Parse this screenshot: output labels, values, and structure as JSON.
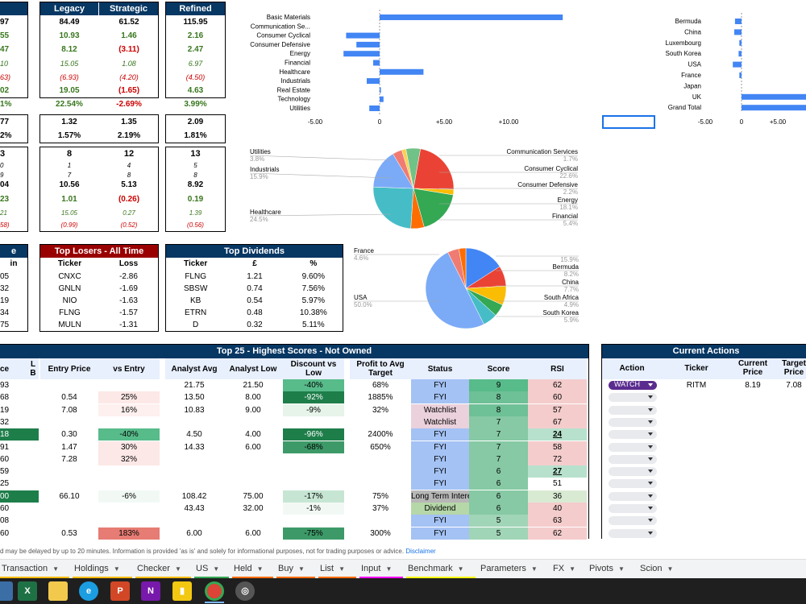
{
  "colors": {
    "navy": "#073763",
    "maroon": "#990000",
    "green": "#38761d",
    "red": "#cc0000",
    "bar_blue": "#4285f4"
  },
  "perf": {
    "headers": [
      "Legacy",
      "Strategic",
      "Refined"
    ],
    "left_partial": [
      "97",
      "55",
      "47",
      "10",
      "63)",
      "02",
      "1%",
      "77",
      "2%",
      "3",
      "0",
      "9",
      "04",
      "23",
      "21",
      "58)"
    ],
    "rows": [
      {
        "cls": "b",
        "vals": [
          "84.49",
          "61.52",
          "115.95"
        ]
      },
      {
        "cls": "g",
        "vals": [
          "10.93",
          "1.46",
          "2.16"
        ]
      },
      {
        "cls": "mixed",
        "vals": [
          "8.12",
          "(3.11)",
          "2.47"
        ]
      },
      {
        "cls": "gi",
        "vals": [
          "15.05",
          "1.08",
          "6.97"
        ]
      },
      {
        "cls": "ri",
        "vals": [
          "(6.93)",
          "(4.20)",
          "(4.50)"
        ]
      },
      {
        "cls": "mixed2",
        "vals": [
          "19.05",
          "(1.65)",
          "4.63"
        ]
      },
      {
        "cls": "mixed3",
        "vals": [
          "22.54%",
          "-2.69%",
          "3.99%"
        ]
      }
    ],
    "rows2": [
      [
        "1.32",
        "1.35",
        "2.09"
      ],
      [
        "1.57%",
        "2.19%",
        "1.81%"
      ]
    ],
    "rows3": [
      [
        "8",
        "12",
        "13"
      ],
      [
        "1",
        "4",
        "5"
      ],
      [
        "7",
        "8",
        "8"
      ],
      [
        "10.56",
        "5.13",
        "8.92"
      ],
      [
        "1.01",
        "(0.26)",
        "0.19"
      ],
      [
        "15.05",
        "0.27",
        "1.39"
      ],
      [
        "(0.99)",
        "(0.52)",
        "(0.56)"
      ]
    ]
  },
  "sector_bar": {
    "categories": [
      "Basic Materials",
      "Communication Se...",
      "Consumer Cyclical",
      "Consumer Defensive",
      "Energy",
      "Financial",
      "Healthcare",
      "Industrials",
      "Real Estate",
      "Technology",
      "Utilities"
    ],
    "values": [
      14.2,
      0,
      -2.6,
      -1.8,
      -2.8,
      -0.5,
      3.4,
      -1.0,
      0.1,
      0.3,
      -0.8
    ],
    "ticks": [
      "-5.00",
      "0",
      "+5.00",
      "+10.00"
    ],
    "tick_vals": [
      -5,
      0,
      5,
      10
    ],
    "xlim": [
      -5,
      10
    ]
  },
  "country_bar": {
    "categories": [
      "Bermuda",
      "China",
      "Luxembourg",
      "South Korea",
      "USA",
      "France",
      "Japan",
      "UK",
      "Grand Total"
    ],
    "values": [
      -0.9,
      -1.0,
      -0.3,
      -0.4,
      -1.2,
      -0.3,
      0,
      10,
      9.5
    ],
    "ticks": [
      "-5.00",
      "0",
      "+5.00"
    ]
  },
  "sector_pie": {
    "labels_left": [
      {
        "name": "Utilities",
        "pct": "3.8%"
      },
      {
        "name": "Industrials",
        "pct": "15.9%"
      },
      {
        "name": "Healthcare",
        "pct": "24.5%"
      }
    ],
    "labels_right": [
      {
        "name": "Communication Services",
        "pct": "1.7%"
      },
      {
        "name": "Consumer Cyclical",
        "pct": "22.6%"
      },
      {
        "name": "Consumer Defensive",
        "pct": "2.2%"
      },
      {
        "name": "Energy",
        "pct": "18.1%"
      },
      {
        "name": "Financial",
        "pct": "5.4%"
      }
    ],
    "slices": [
      {
        "v": 22.6,
        "c": "#ea4335"
      },
      {
        "v": 2.2,
        "c": "#fbbc04"
      },
      {
        "v": 18.1,
        "c": "#34a853"
      },
      {
        "v": 5.4,
        "c": "#ff6d01"
      },
      {
        "v": 24.5,
        "c": "#46bdc6"
      },
      {
        "v": 15.9,
        "c": "#7baaf7"
      },
      {
        "v": 3.8,
        "c": "#f07b72"
      },
      {
        "v": 1.7,
        "c": "#fcd04f"
      },
      {
        "v": 5.8,
        "c": "#71c287"
      }
    ]
  },
  "country_pie": {
    "labels_left": [
      {
        "name": "France",
        "pct": "4.6%"
      },
      {
        "name": "USA",
        "pct": "50.0%"
      }
    ],
    "labels_right": [
      {
        "name": "",
        "pct": "15.9%"
      },
      {
        "name": "Bermuda",
        "pct": "8.2%"
      },
      {
        "name": "China",
        "pct": "7.7%"
      },
      {
        "name": "South Africa",
        "pct": "4.9%"
      },
      {
        "name": "South Korea",
        "pct": "5.9%"
      }
    ],
    "slices": [
      {
        "v": 15.9,
        "c": "#4285f4"
      },
      {
        "v": 8.2,
        "c": "#ea4335"
      },
      {
        "v": 7.7,
        "c": "#fbbc04"
      },
      {
        "v": 4.9,
        "c": "#34a853"
      },
      {
        "v": 5.9,
        "c": "#46bdc6"
      },
      {
        "v": 50,
        "c": "#7baaf7"
      },
      {
        "v": 4.6,
        "c": "#f07b72"
      },
      {
        "v": 2.8,
        "c": "#ff6d01"
      }
    ]
  },
  "gainers": {
    "title": "e",
    "col": "in",
    "vals": [
      "05",
      "32",
      "19",
      "34",
      "75"
    ]
  },
  "losers": {
    "title": "Top Losers - All Time",
    "cols": [
      "Ticker",
      "Loss"
    ],
    "rows": [
      [
        "CNXC",
        "-2.86"
      ],
      [
        "GNLN",
        "-1.69"
      ],
      [
        "NIO",
        "-1.63"
      ],
      [
        "FLNG",
        "-1.57"
      ],
      [
        "MULN",
        "-1.31"
      ]
    ]
  },
  "dividends": {
    "title": "Top Dividends",
    "cols": [
      "Ticker",
      "£",
      "%"
    ],
    "rows": [
      [
        "FLNG",
        "1.21",
        "9.60%"
      ],
      [
        "SBSW",
        "0.74",
        "7.56%"
      ],
      [
        "KB",
        "0.54",
        "5.97%"
      ],
      [
        "ETRN",
        "0.48",
        "10.38%"
      ],
      [
        "D",
        "0.32",
        "5.11%"
      ]
    ]
  },
  "top25": {
    "title": "Top 25 - Highest Scores - Not Owned",
    "cols": {
      "c0": "ce",
      "c1": "L\nB",
      "c2": "Entry Price",
      "c3": "vs Entry",
      "c4": "Analyst Avg",
      "c5": "Analyst Low",
      "c6": "Discount vs Low",
      "c7": "Profit to Avg Target",
      "c8": "Status",
      "c9": "Score",
      "c10": "RSI"
    },
    "rows": [
      [
        "93",
        "",
        "",
        "",
        "21.75",
        "21.50",
        "-40%",
        "68%",
        "FYI",
        "9",
        "62"
      ],
      [
        "68",
        "",
        "0.54",
        "25%",
        "13.50",
        "8.00",
        "-92%",
        "1885%",
        "FYI",
        "8",
        "60"
      ],
      [
        "19",
        "",
        "7.08",
        "16%",
        "10.83",
        "9.00",
        "-9%",
        "32%",
        "Watchlist",
        "8",
        "57"
      ],
      [
        "32",
        "",
        "",
        "",
        "",
        "",
        "",
        "",
        "Watchlist",
        "7",
        "67"
      ],
      [
        "18",
        "",
        "0.30",
        "-40%",
        "4.50",
        "4.00",
        "-96%",
        "2400%",
        "FYI",
        "7",
        "24"
      ],
      [
        "91",
        "",
        "1.47",
        "30%",
        "14.33",
        "6.00",
        "-68%",
        "650%",
        "FYI",
        "7",
        "58"
      ],
      [
        "60",
        "",
        "7.28",
        "32%",
        "",
        "",
        "",
        "",
        "FYI",
        "7",
        "72"
      ],
      [
        "59",
        "",
        "",
        "",
        "",
        "",
        "",
        "",
        "FYI",
        "6",
        "27"
      ],
      [
        "25",
        "",
        "",
        "",
        "",
        "",
        "",
        "",
        "FYI",
        "6",
        "51"
      ],
      [
        "00",
        "",
        "66.10",
        "-6%",
        "108.42",
        "75.00",
        "-17%",
        "75%",
        "Long Term Interest",
        "6",
        "36"
      ],
      [
        "60",
        "",
        "",
        "",
        "43.43",
        "32.00",
        "-1%",
        "37%",
        "Dividend",
        "6",
        "40"
      ],
      [
        "08",
        "",
        "",
        "",
        "",
        "",
        "",
        "",
        "FYI",
        "5",
        "63"
      ],
      [
        "60",
        "",
        "0.53",
        "183%",
        "6.00",
        "6.00",
        "-75%",
        "300%",
        "FYI",
        "5",
        "62"
      ]
    ]
  },
  "actions": {
    "title": "Current Actions",
    "cols": [
      "Action",
      "Ticker",
      "Current Price",
      "Target Price"
    ],
    "row1": {
      "action": "WATCH",
      "ticker": "RITM",
      "current": "8.19",
      "target": "7.08"
    }
  },
  "disclaimer": {
    "text": "d may be delayed by up to 20 minutes. Information is provided 'as is' and solely for informational purposes, not for trading purposes or advice.",
    "link": "Disclaimer"
  },
  "tabs": [
    {
      "label": "Transaction",
      "c": "#fbbc04"
    },
    {
      "label": "Holdings",
      "c": "#fbbc04"
    },
    {
      "label": "Checker",
      "c": "#fbbc04"
    },
    {
      "label": "US",
      "c": "#34a853"
    },
    {
      "label": "Held",
      "c": "#ff6d01"
    },
    {
      "label": "Buy",
      "c": "#ff6d01"
    },
    {
      "label": "List",
      "c": "#ff6d01"
    },
    {
      "label": "Input",
      "c": "#ff00ff"
    },
    {
      "label": "Benchmark",
      "c": "#ffff00"
    },
    {
      "label": "Parameters",
      "c": ""
    },
    {
      "label": "FX",
      "c": ""
    },
    {
      "label": "Pivots",
      "c": ""
    },
    {
      "label": "Scion",
      "c": ""
    }
  ]
}
